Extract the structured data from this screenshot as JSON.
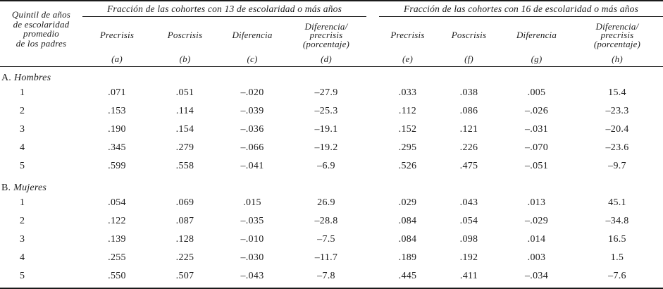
{
  "table": {
    "stub_header_lines": [
      "Quintil de años",
      "de escolaridad",
      "promedio",
      "de los padres"
    ],
    "groups": [
      {
        "title": "Fracción de las cohortes con 13 de escolaridad o más años",
        "columns": [
          {
            "lines": [
              "Precrisis"
            ],
            "letter": "(a)"
          },
          {
            "lines": [
              "Poscrisis"
            ],
            "letter": "(b)"
          },
          {
            "lines": [
              "Diferencia"
            ],
            "letter": "(c)"
          },
          {
            "lines": [
              "Diferencia/",
              "precrisis",
              "(porcentaje)"
            ],
            "letter": "(d)"
          }
        ]
      },
      {
        "title": "Fracción de las cohortes con 16 de escolaridad o más años",
        "columns": [
          {
            "lines": [
              "Precrisis"
            ],
            "letter": "(e)"
          },
          {
            "lines": [
              "Poscrisis"
            ],
            "letter": "(f)"
          },
          {
            "lines": [
              "Diferencia"
            ],
            "letter": "(g)"
          },
          {
            "lines": [
              "Diferencia/",
              "precrisis",
              "(porcentaje)"
            ],
            "letter": "(h)"
          }
        ]
      }
    ],
    "sections": [
      {
        "label_prefix": "A.",
        "label": "Hombres",
        "rows": [
          {
            "quintile": "1",
            "values": [
              ".071",
              ".051",
              "–.020",
              "–27.9",
              ".033",
              ".038",
              ".005",
              "15.4"
            ]
          },
          {
            "quintile": "2",
            "values": [
              ".153",
              ".114",
              "–.039",
              "–25.3",
              ".112",
              ".086",
              "–.026",
              "–23.3"
            ]
          },
          {
            "quintile": "3",
            "values": [
              ".190",
              ".154",
              "–.036",
              "–19.1",
              ".152",
              ".121",
              "–.031",
              "–20.4"
            ]
          },
          {
            "quintile": "4",
            "values": [
              ".345",
              ".279",
              "–.066",
              "–19.2",
              ".295",
              ".226",
              "–.070",
              "–23.6"
            ]
          },
          {
            "quintile": "5",
            "values": [
              ".599",
              ".558",
              "–.041",
              "–6.9",
              ".526",
              ".475",
              "–.051",
              "–9.7"
            ]
          }
        ]
      },
      {
        "label_prefix": "B.",
        "label": "Mujeres",
        "rows": [
          {
            "quintile": "1",
            "values": [
              ".054",
              ".069",
              ".015",
              "26.9",
              ".029",
              ".043",
              ".013",
              "45.1"
            ]
          },
          {
            "quintile": "2",
            "values": [
              ".122",
              ".087",
              "–.035",
              "–28.8",
              ".084",
              ".054",
              "–.029",
              "–34.8"
            ]
          },
          {
            "quintile": "3",
            "values": [
              ".139",
              ".128",
              "–.010",
              "–7.5",
              ".084",
              ".098",
              ".014",
              "16.5"
            ]
          },
          {
            "quintile": "4",
            "values": [
              ".255",
              ".225",
              "–.030",
              "–11.7",
              ".189",
              ".192",
              ".003",
              "1.5"
            ]
          },
          {
            "quintile": "5",
            "values": [
              ".550",
              ".507",
              "–.043",
              "–7.8",
              ".445",
              ".411",
              "–.034",
              "–7.6"
            ]
          }
        ]
      }
    ]
  }
}
